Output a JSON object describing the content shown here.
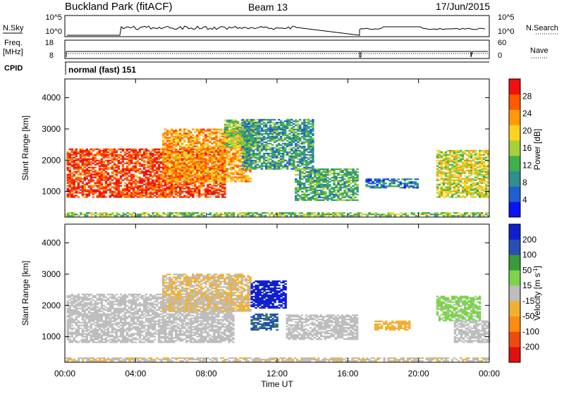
{
  "header": {
    "title": "Buckland Park (fitACF)",
    "beam": "Beam 13",
    "date": "17/Jun/2015"
  },
  "top_panels": {
    "nsky_label": "N.Sky",
    "nsky_ticks_left": [
      "10^5",
      "10^0"
    ],
    "nsky_ticks_right": [
      "10^5",
      "10^0"
    ],
    "nsearch_label": "N.Search",
    "freq_label": "Freq.",
    "freq_unit": "[MHz]",
    "freq_ticks_left": [
      "18",
      "8"
    ],
    "nave_ticks_right": [
      "60",
      "0"
    ],
    "nave_label": "Nave",
    "cpid_label": "CPID",
    "cpid_value": "normal (fast) 151"
  },
  "colors": {
    "power_scale": [
      "#0a14f0",
      "#1f5fd0",
      "#2f8f8f",
      "#40b04a",
      "#a7cf39",
      "#ffd21f",
      "#ff9a0a",
      "#ff5a00",
      "#f01010"
    ],
    "velocity_scale": [
      "#e01010",
      "#f04a10",
      "#ff8a10",
      "#f0b030",
      "#bdbdbd",
      "#7cd44a",
      "#3a9a3a",
      "#2a4fb0",
      "#1020d0"
    ],
    "ground_scatter": "#b4b4b4"
  },
  "chart_data": [
    {
      "type": "heatmap",
      "name": "power",
      "ylabel": "Slant Range [km]",
      "xlabel": "",
      "x_ticks": [
        "00:00",
        "04:00",
        "08:00",
        "12:00",
        "16:00",
        "20:00",
        "00:00"
      ],
      "y_ticks": [
        "1000",
        "2000",
        "3000",
        "4000"
      ],
      "xlim": [
        0,
        24
      ],
      "ylim": [
        180,
        4600
      ],
      "colorbar_label": "Power [dB]",
      "colorbar_ticks": [
        "28",
        "24",
        "20",
        "16",
        "12",
        "8",
        "4"
      ],
      "colorbar_range": [
        0,
        32
      ],
      "regions": [
        {
          "t": [
            0.1,
            9.0
          ],
          "r": [
            800,
            2350
          ],
          "level": 0.88
        },
        {
          "t": [
            5.5,
            10.5
          ],
          "r": [
            1300,
            3000
          ],
          "level": 0.72
        },
        {
          "t": [
            9.0,
            11.0
          ],
          "r": [
            2400,
            3300
          ],
          "level": 0.45
        },
        {
          "t": [
            10.0,
            14.0
          ],
          "r": [
            1700,
            3300
          ],
          "level": 0.32
        },
        {
          "t": [
            13.0,
            16.5
          ],
          "r": [
            700,
            1700
          ],
          "level": 0.38
        },
        {
          "t": [
            17.0,
            20.0
          ],
          "r": [
            1100,
            1400
          ],
          "level": 0.22
        },
        {
          "t": [
            21.0,
            23.9
          ],
          "r": [
            800,
            2300
          ],
          "level": 0.55
        },
        {
          "t": [
            0.0,
            24.0
          ],
          "r": [
            200,
            330
          ],
          "level": 0.45
        }
      ]
    },
    {
      "type": "heatmap",
      "name": "velocity",
      "ylabel": "Slant Range [km]",
      "xlabel": "Time UT",
      "x_ticks": [
        "00:00",
        "04:00",
        "08:00",
        "12:00",
        "16:00",
        "20:00",
        "00:00"
      ],
      "y_ticks": [
        "1000",
        "2000",
        "3000",
        "4000"
      ],
      "xlim": [
        0,
        24
      ],
      "ylim": [
        180,
        4600
      ],
      "colorbar_label": "Velocity [m s^-1]",
      "colorbar_ticks": [
        "200",
        "100",
        "50",
        "15",
        "-15",
        "-50",
        "-100",
        "-200"
      ],
      "colorbar_range": [
        -250,
        250
      ],
      "regions": [
        {
          "t": [
            0.1,
            9.5
          ],
          "r": [
            800,
            2350
          ],
          "v": 0
        },
        {
          "t": [
            5.5,
            10.5
          ],
          "r": [
            1800,
            3000
          ],
          "v": -30
        },
        {
          "t": [
            10.5,
            12.5
          ],
          "r": [
            1900,
            2800
          ],
          "v": 220
        },
        {
          "t": [
            10.5,
            12.0
          ],
          "r": [
            1200,
            1700
          ],
          "v": 150
        },
        {
          "t": [
            12.5,
            16.5
          ],
          "r": [
            900,
            1700
          ],
          "v": 0
        },
        {
          "t": [
            17.5,
            19.5
          ],
          "r": [
            1200,
            1500
          ],
          "v": -60
        },
        {
          "t": [
            21.0,
            23.5
          ],
          "r": [
            1500,
            2300
          ],
          "v": 40
        },
        {
          "t": [
            22.0,
            24.0
          ],
          "r": [
            800,
            1500
          ],
          "v": 0
        },
        {
          "t": [
            0.0,
            24.0
          ],
          "r": [
            200,
            330
          ],
          "v": -20
        }
      ]
    }
  ]
}
